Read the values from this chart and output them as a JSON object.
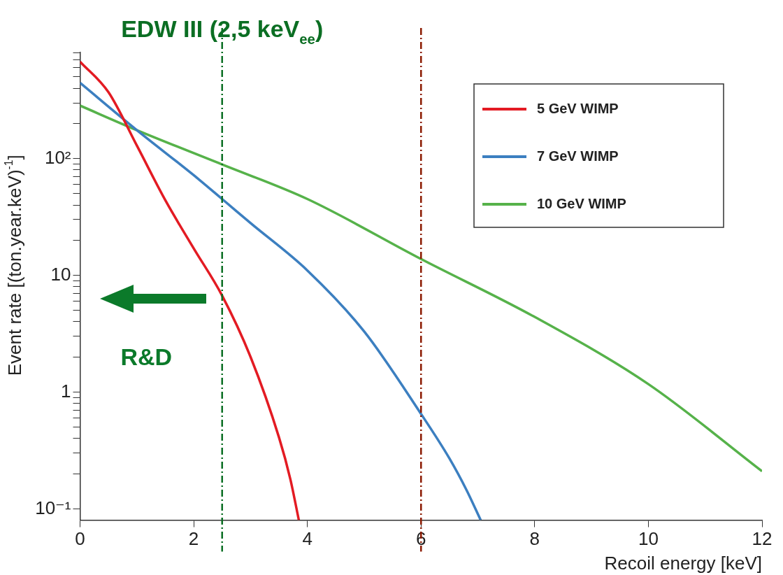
{
  "chart_data": {
    "type": "line",
    "xlabel": "Recoil energy [keV]",
    "ylabel": "Event rate [(ton.year.keV)$^{-1}$]",
    "log": "y",
    "xlim": [
      0,
      12
    ],
    "ylim": [
      0.08,
      810
    ],
    "xticks": [
      0,
      2,
      4,
      6,
      8,
      10,
      12
    ],
    "yticks": [
      {
        "value": 0.1,
        "label": "10⁻¹"
      },
      {
        "value": 0.2,
        "label": null
      },
      {
        "value": 0.3,
        "label": null
      },
      {
        "value": 0.4,
        "label": null
      },
      {
        "value": 0.5,
        "label": null
      },
      {
        "value": 0.6,
        "label": null
      },
      {
        "value": 0.7,
        "label": null
      },
      {
        "value": 0.8,
        "label": null
      },
      {
        "value": 0.9,
        "label": null
      },
      {
        "value": 1,
        "label": "1"
      },
      {
        "value": 2,
        "label": null
      },
      {
        "value": 3,
        "label": null
      },
      {
        "value": 4,
        "label": null
      },
      {
        "value": 5,
        "label": null
      },
      {
        "value": 6,
        "label": null
      },
      {
        "value": 7,
        "label": null
      },
      {
        "value": 8,
        "label": null
      },
      {
        "value": 9,
        "label": null
      },
      {
        "value": 10,
        "label": "10"
      },
      {
        "value": 20,
        "label": null
      },
      {
        "value": 30,
        "label": null
      },
      {
        "value": 40,
        "label": null
      },
      {
        "value": 50,
        "label": null
      },
      {
        "value": 60,
        "label": null
      },
      {
        "value": 70,
        "label": null
      },
      {
        "value": 80,
        "label": null
      },
      {
        "value": 90,
        "label": null
      },
      {
        "value": 100,
        "label": "10²"
      },
      {
        "value": 200,
        "label": null
      },
      {
        "value": 300,
        "label": null
      },
      {
        "value": 400,
        "label": null
      },
      {
        "value": 500,
        "label": null
      },
      {
        "value": 600,
        "label": null
      },
      {
        "value": 700,
        "label": null
      },
      {
        "value": 800,
        "label": null
      }
    ],
    "grid": false,
    "legend": "top right",
    "marker": "none",
    "line_style": "solid",
    "series": [
      {
        "name": "5 GeV WIMP",
        "color": "#e31b23",
        "x": [
          0,
          0.5,
          1,
          1.5,
          2,
          2.5,
          3,
          3.5,
          3.7,
          3.85
        ],
        "values": [
          676,
          370,
          129,
          44,
          17,
          6.7,
          2,
          0.41,
          0.18,
          0.08
        ]
      },
      {
        "name": "7 GeV WIMP",
        "color": "#3c7fc0",
        "x": [
          0,
          1,
          2,
          2.5,
          3,
          4,
          5,
          6,
          6.5,
          6.8,
          7.05
        ],
        "values": [
          445,
          175,
          72,
          45,
          28,
          11,
          3.3,
          0.65,
          0.27,
          0.145,
          0.08
        ]
      },
      {
        "name": "10 GeV WIMP",
        "color": "#56b24a",
        "x": [
          0,
          1,
          2.5,
          4,
          6,
          8,
          10,
          12
        ],
        "values": [
          284,
          175,
          89,
          45,
          13.8,
          4.4,
          1.17,
          0.21
        ]
      }
    ],
    "ref_lines": [
      {
        "axis": "x",
        "value": 2.5,
        "label": "EDW III (2,5 keV$_{ee}$)",
        "color": "#0b6e23",
        "line_style": "dashed"
      },
      {
        "axis": "x",
        "value": 6,
        "color": "#8b1a00",
        "line_style": "dashed"
      }
    ],
    "annotations": [
      "R&D"
    ]
  }
}
